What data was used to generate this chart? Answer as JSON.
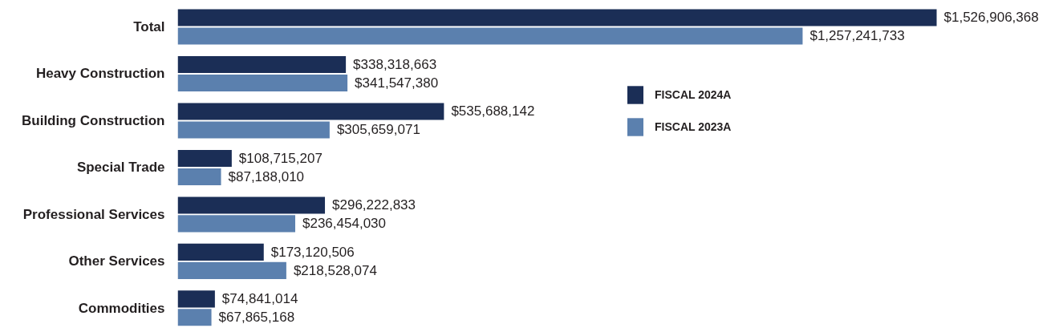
{
  "chart_data": {
    "type": "bar",
    "orientation": "horizontal",
    "categories": [
      "Total",
      "Heavy Construction",
      "Building Construction",
      "Special Trade",
      "Professional Services",
      "Other Services",
      "Commodities"
    ],
    "series": [
      {
        "name": "FISCAL 2024A",
        "color": "#1b2e56",
        "values": [
          1526906368,
          338318663,
          535688142,
          108715207,
          296222833,
          173120506,
          74841014
        ],
        "value_labels": [
          "$1,526,906,368",
          "$338,318,663",
          "$535,688,142",
          "$108,715,207",
          "$296,222,833",
          "$173,120,506",
          "$74,841,014"
        ]
      },
      {
        "name": "FISCAL 2023A",
        "color": "#5b80ae",
        "values": [
          1257241733,
          341547380,
          305659071,
          87188010,
          236454030,
          218528074,
          67865168
        ],
        "value_labels": [
          "$1,257,241,733",
          "$341,547,380",
          "$305,659,071",
          "$87,188,010",
          "$236,454,030",
          "$218,528,074",
          "$67,865,168"
        ]
      }
    ],
    "legend": "right",
    "tick_labels": "y"
  }
}
